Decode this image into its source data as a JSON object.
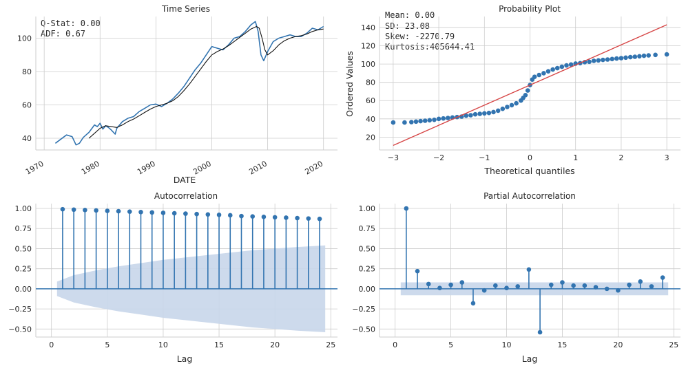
{
  "colors": {
    "series": "#3274b0",
    "smooth": "#111111",
    "fitline": "#d64545",
    "band": "#c8d6ea"
  },
  "chart_data": [
    {
      "type": "line",
      "title": "Time Series",
      "xlabel": "DATE",
      "ylabel": "",
      "xlim": [
        1968.5,
        2022.5
      ],
      "ylim": [
        33,
        113
      ],
      "xticks": [
        "1970",
        "1980",
        "1990",
        "2000",
        "2010",
        "2020"
      ],
      "yticks": [
        "40",
        "60",
        "80",
        "100"
      ],
      "stats": [
        "Q-Stat:     0.00",
        "ADF:        0.67"
      ],
      "series": [
        {
          "role": "observed",
          "x": [
            1972,
            1973,
            1974,
            1975,
            1975.7,
            1976.3,
            1977,
            1978,
            1979,
            1979.5,
            1980,
            1980.5,
            1981,
            1981.5,
            1982,
            1982.7,
            1983,
            1984,
            1985,
            1986,
            1987,
            1988,
            1989,
            1990,
            1991,
            1992,
            1993,
            1994,
            1995,
            1996,
            1997,
            1998,
            1999,
            2000,
            2001,
            2002,
            2003,
            2004,
            2005,
            2006,
            2007,
            2007.8,
            2008.3,
            2008.8,
            2009.3,
            2010,
            2011,
            2012,
            2013,
            2014,
            2015,
            2016,
            2017,
            2018,
            2019,
            2020
          ],
          "y": [
            37,
            39.5,
            42,
            41,
            36,
            37,
            40.5,
            43.5,
            48,
            47,
            49,
            45.5,
            47.5,
            46.5,
            45,
            42.5,
            46,
            50,
            52,
            53,
            56,
            58,
            60,
            60.5,
            59,
            61,
            63.5,
            67,
            71,
            76,
            81,
            85,
            90,
            95,
            94,
            93,
            96,
            100,
            101,
            104,
            108,
            110,
            104,
            90,
            86.5,
            92,
            98,
            100,
            101,
            102,
            101,
            101,
            103,
            106,
            105,
            107
          ]
        },
        {
          "role": "smoothed",
          "x": [
            1978,
            1979,
            1980,
            1981,
            1982,
            1983,
            1984,
            1985,
            1986,
            1987,
            1988,
            1989,
            1990,
            1991,
            1992,
            1993,
            1994,
            1995,
            1996,
            1997,
            1998,
            1999,
            2000,
            2001,
            2002,
            2003,
            2004,
            2005,
            2006,
            2007,
            2008,
            2008.5,
            2009,
            2009.5,
            2010,
            2011,
            2012,
            2013,
            2014,
            2015,
            2016,
            2017,
            2018,
            2019,
            2020
          ],
          "y": [
            40,
            43,
            46,
            47.5,
            47,
            46.5,
            48,
            50,
            51.5,
            53.5,
            55.5,
            57.5,
            59,
            60,
            61,
            62.5,
            65,
            68.5,
            72.5,
            77,
            81.5,
            86,
            90,
            92,
            93.5,
            95.5,
            98,
            100.5,
            103,
            105.5,
            107,
            106,
            100,
            93,
            90,
            92.5,
            96,
            98.5,
            100,
            101,
            101.5,
            102.5,
            104,
            105,
            105.5
          ]
        }
      ]
    },
    {
      "type": "scatter",
      "title": "Probability Plot",
      "xlabel": "Theoretical quantiles",
      "ylabel": "Ordered Values",
      "xlim": [
        -3.3,
        3.3
      ],
      "ylim": [
        6,
        152
      ],
      "xticks": [
        "−3",
        "−2",
        "−1",
        "0",
        "1",
        "2",
        "3"
      ],
      "yticks": [
        "20",
        "40",
        "60",
        "80",
        "100",
        "120",
        "140"
      ],
      "stats": [
        "Mean:          0.00",
        "SD:           23.08",
        "Skew:     -2270.79",
        "Kurtosis:405644.41"
      ],
      "fit_line": {
        "x": [
          -3,
          3
        ],
        "y": [
          11,
          143
        ]
      },
      "points": {
        "x": [
          -3,
          -2.75,
          -2.6,
          -2.5,
          -2.4,
          -2.3,
          -2.2,
          -2.1,
          -2,
          -1.9,
          -1.8,
          -1.7,
          -1.6,
          -1.5,
          -1.4,
          -1.3,
          -1.2,
          -1.1,
          -1,
          -0.9,
          -0.8,
          -0.7,
          -0.6,
          -0.5,
          -0.4,
          -0.3,
          -0.2,
          -0.15,
          -0.1,
          -0.05,
          0,
          0.05,
          0.1,
          0.2,
          0.3,
          0.4,
          0.5,
          0.6,
          0.7,
          0.8,
          0.9,
          1,
          1.1,
          1.2,
          1.3,
          1.4,
          1.5,
          1.6,
          1.7,
          1.8,
          1.9,
          2,
          2.1,
          2.2,
          2.3,
          2.4,
          2.5,
          2.6,
          2.75,
          3
        ],
        "y": [
          36,
          36,
          36.5,
          37,
          37.5,
          38,
          38.5,
          39,
          40,
          40.5,
          41,
          41.5,
          42,
          42.5,
          43.5,
          44,
          45,
          45.5,
          46,
          46.5,
          47.5,
          49,
          51,
          53,
          55,
          57,
          60,
          63,
          66,
          71,
          77,
          83,
          86,
          88,
          90,
          92,
          94,
          95.5,
          97,
          98.5,
          99.5,
          100.5,
          101,
          102,
          102.5,
          103.5,
          104,
          104.5,
          105,
          105.5,
          106,
          106.5,
          107,
          107.5,
          108,
          108.5,
          109,
          109.5,
          110,
          110.5
        ]
      }
    },
    {
      "type": "stem",
      "title": "Autocorrelation",
      "xlabel": "Lag",
      "ylabel": "",
      "xlim": [
        -1.4,
        25.6
      ],
      "ylim": [
        -0.6,
        1.06
      ],
      "xticks": [
        "0",
        "5",
        "10",
        "15",
        "20",
        "25"
      ],
      "yticks": [
        "−0.50",
        "−0.25",
        "0.00",
        "0.25",
        "0.50",
        "0.75",
        "1.00"
      ],
      "lags": [
        1,
        2,
        3,
        4,
        5,
        6,
        7,
        8,
        9,
        10,
        11,
        12,
        13,
        14,
        15,
        16,
        17,
        18,
        19,
        20,
        21,
        22,
        23,
        24
      ],
      "values": [
        0.99,
        0.985,
        0.98,
        0.975,
        0.97,
        0.965,
        0.96,
        0.955,
        0.95,
        0.945,
        0.94,
        0.935,
        0.93,
        0.925,
        0.92,
        0.915,
        0.905,
        0.9,
        0.895,
        0.89,
        0.885,
        0.88,
        0.875,
        0.87
      ],
      "confidence": {
        "x": [
          0.5,
          2,
          4,
          6,
          8,
          10,
          12,
          14,
          16,
          18,
          20,
          22,
          24.5
        ],
        "upper": [
          0.09,
          0.17,
          0.23,
          0.28,
          0.32,
          0.36,
          0.39,
          0.42,
          0.45,
          0.48,
          0.5,
          0.52,
          0.54
        ]
      }
    },
    {
      "type": "stem",
      "title": "Partial Autocorrelation",
      "xlabel": "Lag",
      "ylabel": "",
      "xlim": [
        -1.4,
        25.6
      ],
      "ylim": [
        -0.6,
        1.06
      ],
      "xticks": [
        "0",
        "5",
        "10",
        "15",
        "20",
        "25"
      ],
      "yticks": [
        "−0.50",
        "−0.25",
        "0.00",
        "0.25",
        "0.50",
        "0.75",
        "1.00"
      ],
      "lags": [
        1,
        2,
        3,
        4,
        5,
        6,
        7,
        8,
        9,
        10,
        11,
        12,
        13,
        14,
        15,
        16,
        17,
        18,
        19,
        20,
        21,
        22,
        23,
        24
      ],
      "values": [
        1.0,
        0.22,
        0.06,
        0.01,
        0.05,
        0.08,
        -0.18,
        -0.02,
        0.04,
        0.01,
        0.03,
        0.24,
        -0.54,
        0.05,
        0.08,
        0.04,
        0.04,
        0.02,
        0.0,
        -0.02,
        0.05,
        0.09,
        0.03,
        0.14
      ],
      "confidence": {
        "x": [
          0.5,
          24.5
        ],
        "upper": [
          0.08,
          0.08
        ]
      }
    }
  ]
}
